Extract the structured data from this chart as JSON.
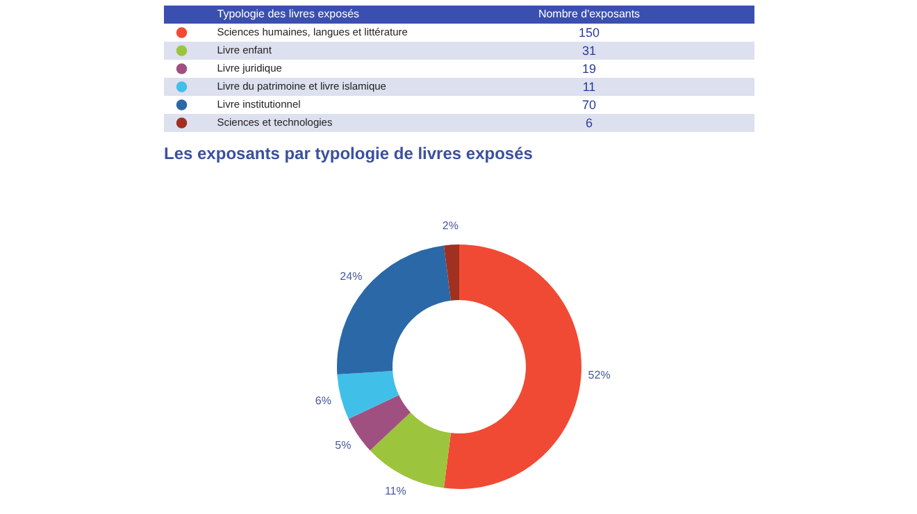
{
  "chart_data": [
    {
      "type": "other",
      "xlabel": "Typologie des livres exposés",
      "ylabel": "Nombre d'exposants",
      "categories": [
        "Sciences humaines, langues et littérature",
        "Livre enfant",
        "Livre juridique",
        "Livre du patrimoine et livre islamique",
        "Livre institutionnel",
        "Sciences et technologies"
      ],
      "values": [
        150,
        31,
        19,
        11,
        70,
        6
      ],
      "data_labels": true
    },
    {
      "type": "donut",
      "title": "Les exposants par typologie de livres exposés",
      "categories": [
        null,
        null,
        null,
        null,
        null,
        null
      ],
      "values": [
        52,
        11,
        5,
        6,
        24,
        2
      ],
      "colors": [
        "#f04a35",
        "#9cc43c",
        "#a05080",
        "#40c0e8",
        "#2a68a8",
        "#a03020"
      ],
      "value_labels": [
        "52%",
        "11%",
        "5%",
        "6%",
        "24%",
        "2%"
      ]
    }
  ]
}
